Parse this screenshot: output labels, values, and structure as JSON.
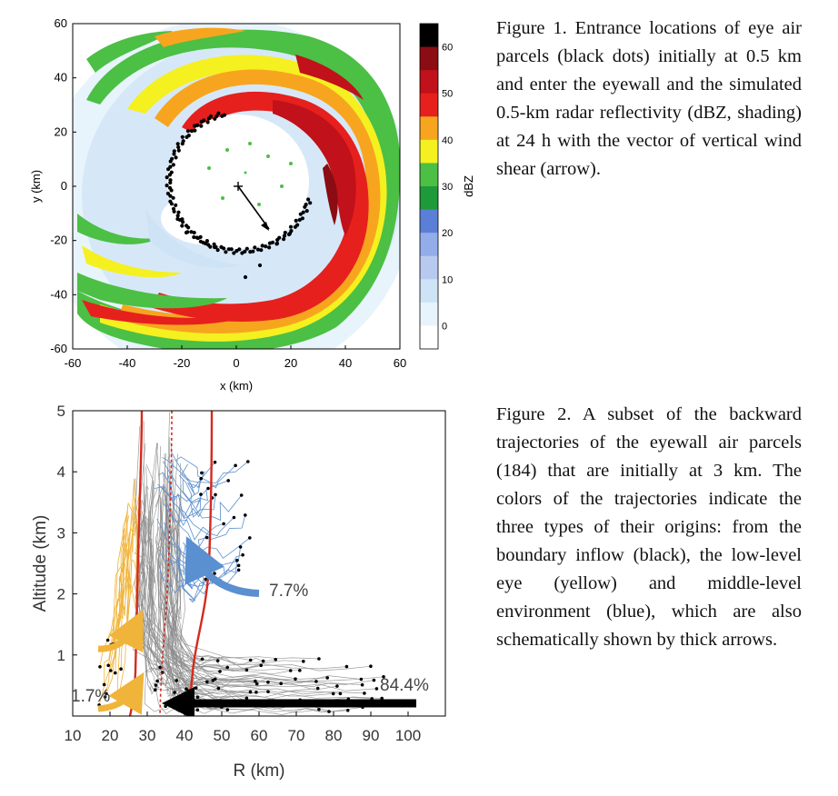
{
  "figure1": {
    "caption": "Figure 1. Entrance locations of eye air parcels (black dots) initially at 0.5 km and enter the eyewall and the simulated 0.5-km radar reflectivity (dBZ, shading) at 24 h with the vector of vertical wind shear (arrow).",
    "xlabel": "x (km)",
    "ylabel": "y (km)",
    "x_ticks": [
      "-60",
      "-40",
      "-20",
      "0",
      "20",
      "40",
      "60"
    ],
    "y_ticks": [
      "60",
      "40",
      "20",
      "0",
      "-20",
      "-40",
      "-60"
    ],
    "colorbar_label": "dBZ",
    "colorbar_ticks": [
      "60",
      "50",
      "40",
      "30",
      "20",
      "10",
      "0"
    ],
    "colors": {
      "c0": "#ffffff",
      "c5": "#e8f4fb",
      "c10": "#cfe3f7",
      "c15": "#b7c9ef",
      "c20": "#93acea",
      "c25": "#5b7fd6",
      "c30": "#1e9a3a",
      "c35": "#4cbf45",
      "c40": "#f5f020",
      "c45": "#f7a51f",
      "c50": "#e6201d",
      "c55": "#c1111a",
      "c60": "#8b0c12",
      "c65": "#000000"
    }
  },
  "figure2": {
    "caption": "Figure 2. A subset of the backward trajectories of the eyewall air parcels (184) that are initially at 3 km. The colors of the trajectories indicate the three types of their origins: from the boundary inflow (black), the low-level eye (yellow) and middle-level environment (blue), which are also schematically shown by thick arrows.",
    "xlabel": "R (km)",
    "ylabel": "Altitude (km)",
    "x_ticks": [
      "10",
      "20",
      "30",
      "40",
      "50",
      "60",
      "70",
      "80",
      "90",
      "100"
    ],
    "y_ticks": [
      "5",
      "4",
      "3",
      "2",
      "1"
    ],
    "label_blue": "7.7%",
    "label_yellow": "1.7%",
    "label_black": "84.4%",
    "colors": {
      "blue": "#5a8fd0",
      "yellow": "#f0b43a",
      "gray": "#8c8c8c",
      "red": "#d42a1e",
      "black": "#000000"
    }
  }
}
